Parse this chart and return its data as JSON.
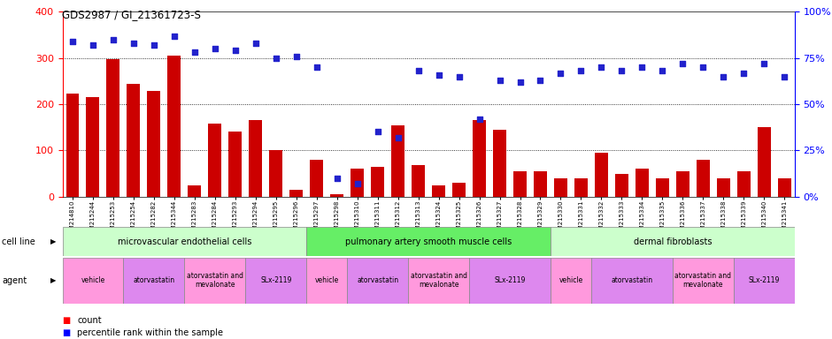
{
  "title": "GDS2987 / GI_21361723-S",
  "samples": [
    "GSM214810",
    "GSM215244",
    "GSM215253",
    "GSM215254",
    "GSM215282",
    "GSM215344",
    "GSM215283",
    "GSM215284",
    "GSM215293",
    "GSM215294",
    "GSM215295",
    "GSM215296",
    "GSM215297",
    "GSM215298",
    "GSM215310",
    "GSM215311",
    "GSM215312",
    "GSM215313",
    "GSM215324",
    "GSM215325",
    "GSM215326",
    "GSM215327",
    "GSM215328",
    "GSM215329",
    "GSM215330",
    "GSM215331",
    "GSM215332",
    "GSM215333",
    "GSM215334",
    "GSM215335",
    "GSM215336",
    "GSM215337",
    "GSM215338",
    "GSM215339",
    "GSM215340",
    "GSM215341"
  ],
  "counts": [
    224,
    215,
    298,
    245,
    228,
    305,
    25,
    158,
    140,
    165,
    100,
    15,
    80,
    5,
    60,
    65,
    155,
    68,
    25,
    30,
    165,
    145,
    55,
    55,
    40,
    40,
    95,
    50,
    60,
    40,
    55,
    80,
    40,
    55,
    150,
    40
  ],
  "percentile": [
    84,
    82,
    85,
    83,
    82,
    87,
    78,
    80,
    79,
    83,
    75,
    76,
    70,
    10,
    7,
    35,
    32,
    68,
    66,
    65,
    42,
    63,
    62,
    63,
    67,
    68,
    70,
    68,
    70,
    68,
    72,
    70,
    65,
    67,
    72,
    65
  ],
  "cell_line_groups": [
    {
      "label": "microvascular endothelial cells",
      "start": 0,
      "end": 12,
      "color": "#CCFFCC"
    },
    {
      "label": "pulmonary artery smooth muscle cells",
      "start": 12,
      "end": 24,
      "color": "#66DD66"
    },
    {
      "label": "dermal fibroblasts",
      "start": 24,
      "end": 36,
      "color": "#CCFFCC"
    }
  ],
  "agent_groups": [
    {
      "label": "vehicle",
      "start": 0,
      "end": 3,
      "color": "#FF88CC"
    },
    {
      "label": "atorvastatin",
      "start": 3,
      "end": 6,
      "color": "#DD88DD"
    },
    {
      "label": "atorvastatin and\nmevalonate",
      "start": 6,
      "end": 9,
      "color": "#FF88CC"
    },
    {
      "label": "SLx-2119",
      "start": 9,
      "end": 12,
      "color": "#DD88DD"
    },
    {
      "label": "vehicle",
      "start": 12,
      "end": 14,
      "color": "#FF88CC"
    },
    {
      "label": "atorvastatin",
      "start": 14,
      "end": 17,
      "color": "#DD88DD"
    },
    {
      "label": "atorvastatin and\nmevalonate",
      "start": 17,
      "end": 20,
      "color": "#FF88CC"
    },
    {
      "label": "SLx-2119",
      "start": 20,
      "end": 24,
      "color": "#DD88DD"
    },
    {
      "label": "vehicle",
      "start": 24,
      "end": 26,
      "color": "#FF88CC"
    },
    {
      "label": "atorvastatin",
      "start": 26,
      "end": 30,
      "color": "#DD88DD"
    },
    {
      "label": "atorvastatin and\nmevalonate",
      "start": 30,
      "end": 33,
      "color": "#FF88CC"
    },
    {
      "label": "SLx-2119",
      "start": 33,
      "end": 36,
      "color": "#DD88DD"
    }
  ],
  "ylim_left": [
    0,
    400
  ],
  "ylim_right": [
    0,
    100
  ],
  "yticks_left": [
    0,
    100,
    200,
    300,
    400
  ],
  "yticks_right": [
    0,
    25,
    50,
    75,
    100
  ],
  "bar_color": "#CC0000",
  "dot_color": "#2222CC",
  "bg_color": "#FFFFFF",
  "plot_bg": "#FFFFFF",
  "cell_line_colors": [
    "#CCFFCC",
    "#66EE66",
    "#CCFFCC"
  ],
  "agent_colors": [
    "#FF99DD",
    "#DD88EE",
    "#FF99DD",
    "#DD88EE",
    "#FF99DD",
    "#DD88EE",
    "#FF99DD",
    "#DD88EE",
    "#FF99DD",
    "#DD88EE",
    "#FF99DD",
    "#DD88EE"
  ]
}
